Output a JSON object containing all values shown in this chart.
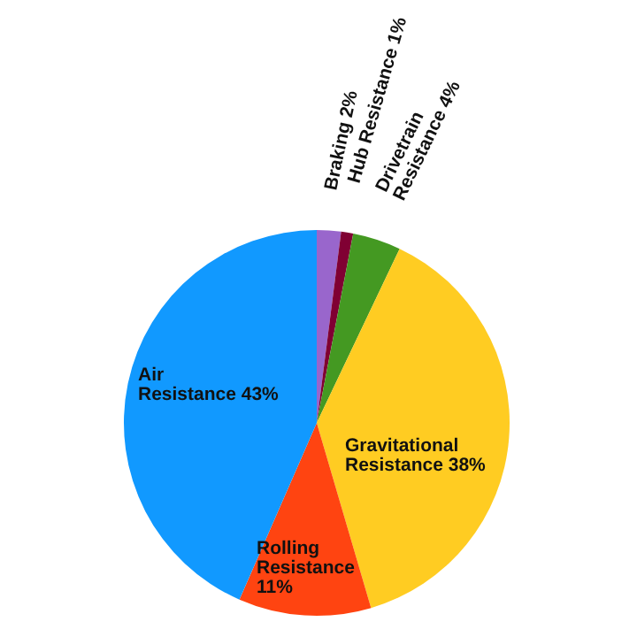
{
  "chart_data": {
    "type": "pie",
    "categories": [
      "Braking",
      "Hub Resistance",
      "Drivetrain Resistance",
      "Gravitational Resistance",
      "Rolling Resistance",
      "Air Resistance"
    ],
    "values": [
      2,
      1,
      4,
      38,
      11,
      43
    ],
    "value_labels": [
      "2%",
      "1%",
      "4%",
      "38%",
      "11%",
      "43%"
    ],
    "colors": [
      "#9966cc",
      "#800033",
      "#449922",
      "#ffcc22",
      "#ff4411",
      "#1199ff"
    ],
    "legend": false
  }
}
